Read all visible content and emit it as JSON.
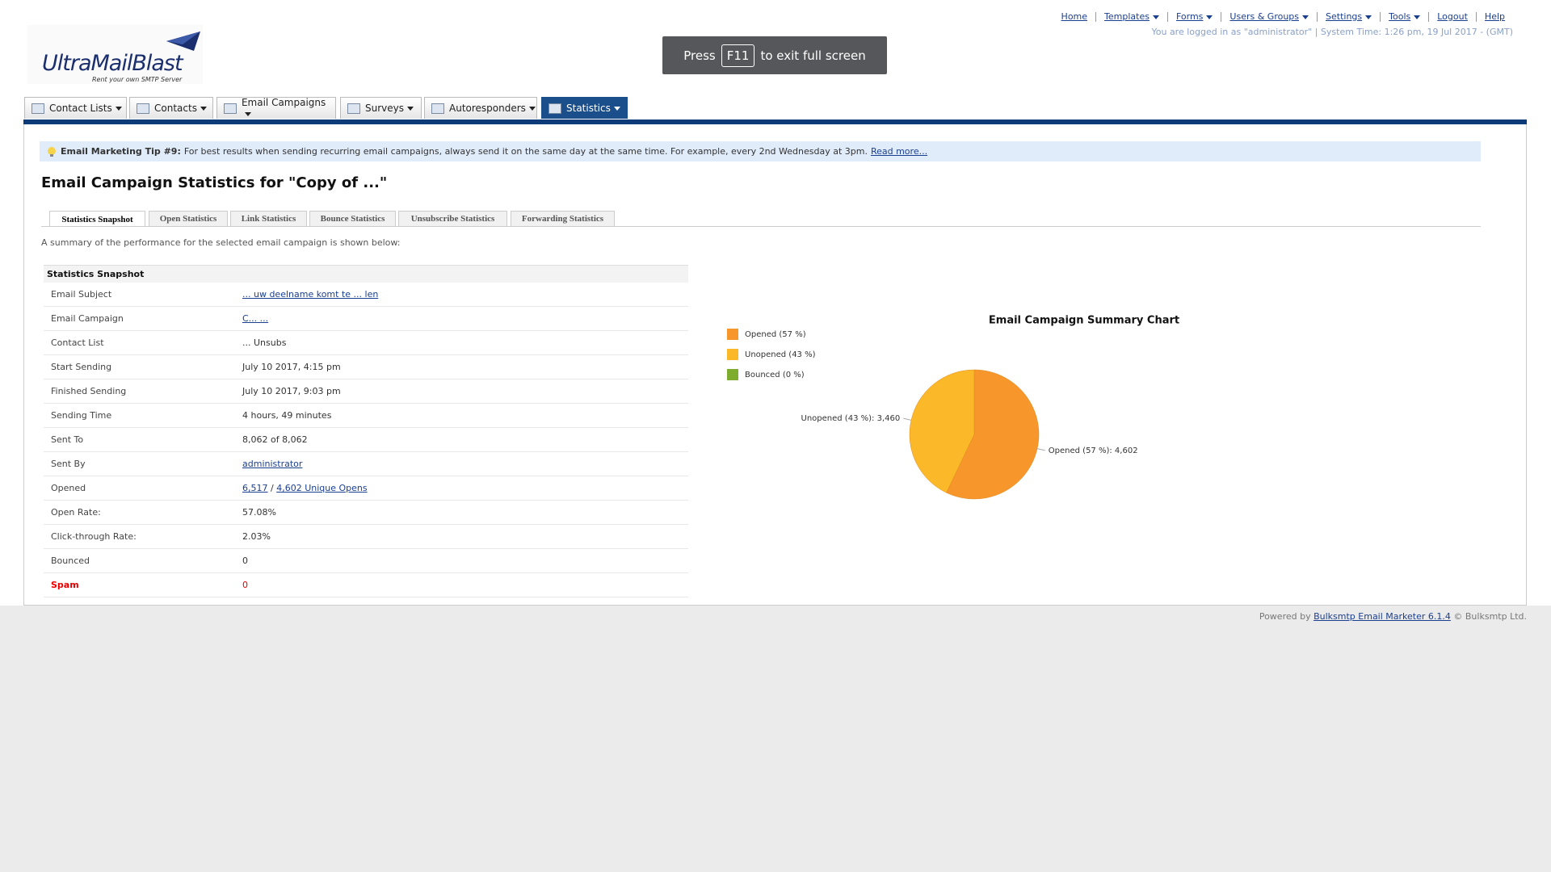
{
  "top_nav": {
    "links": [
      "Home",
      "Templates",
      "Forms",
      "Users & Groups",
      "Settings",
      "Tools",
      "Logout",
      "Help"
    ],
    "status": "You are logged in as \"administrator\" | System Time: 1:26 pm, 19 Jul 2017 - (GMT)"
  },
  "logo": {
    "name": "UltraMailBlast",
    "tagline": "Rent your own SMTP Server"
  },
  "fullscreen_notice": {
    "before": "Press",
    "key": "F11",
    "after": "to exit full screen"
  },
  "tabs": [
    "Contact Lists",
    "Contacts",
    "Email Campaigns",
    "Surveys",
    "Autoresponders",
    "Statistics"
  ],
  "tip": {
    "title": "Email Marketing Tip #9:",
    "text": "For best results when sending recurring email campaigns, always send it on the same day at the same time. For example, every 2nd Wednesday at 3pm.",
    "link": "Read more..."
  },
  "page_title": "Email Campaign Statistics for \"Copy of ...\"",
  "sub_tabs": [
    "Statistics Snapshot",
    "Open Statistics",
    "Link Statistics",
    "Bounce Statistics",
    "Unsubscribe Statistics",
    "Forwarding Statistics"
  ],
  "summary": "A summary of the performance for the selected email campaign is shown below:",
  "table": {
    "header": "Statistics Snapshot",
    "rows": [
      [
        "Email Subject",
        "... uw deelname komt te ... len"
      ],
      [
        "Email Campaign",
        "C... ..."
      ],
      [
        "Contact List",
        "... Unsubs"
      ],
      [
        "Start Sending",
        "July 10 2017, 4:15 pm"
      ],
      [
        "Finished Sending",
        "July 10 2017, 9:03 pm"
      ],
      [
        "Sending Time",
        "4 hours, 49 minutes"
      ],
      [
        "Sent To",
        "8,062 of 8,062"
      ],
      [
        "Sent By",
        "administrator"
      ],
      [
        "Opened",
        "6,517",
        "/",
        "4,602 Unique Opens"
      ],
      [
        "Open Rate:",
        "57.08%"
      ],
      [
        "Click-through Rate:",
        "2.03%"
      ],
      [
        "Bounced",
        "0"
      ],
      [
        "Spam",
        "0"
      ]
    ]
  },
  "chart_data": {
    "type": "pie",
    "title": "Email Campaign Summary Chart",
    "categories": [
      "Opened (57 %)",
      "Unopened (43 %)",
      "Bounced (0 %)"
    ],
    "values": [
      4602,
      3460,
      0
    ],
    "value_labels": [
      "Opened (57 %): 4,602",
      "Unopened (43 %): 3,460",
      null
    ],
    "colors": [
      "#f7962a",
      "#fbb829",
      "#7dac2e"
    ]
  },
  "footer": {
    "before": "Powered by",
    "link": "Bulksmtp Email Marketer 6.1.4",
    "after": "© Bulksmtp Ltd."
  }
}
